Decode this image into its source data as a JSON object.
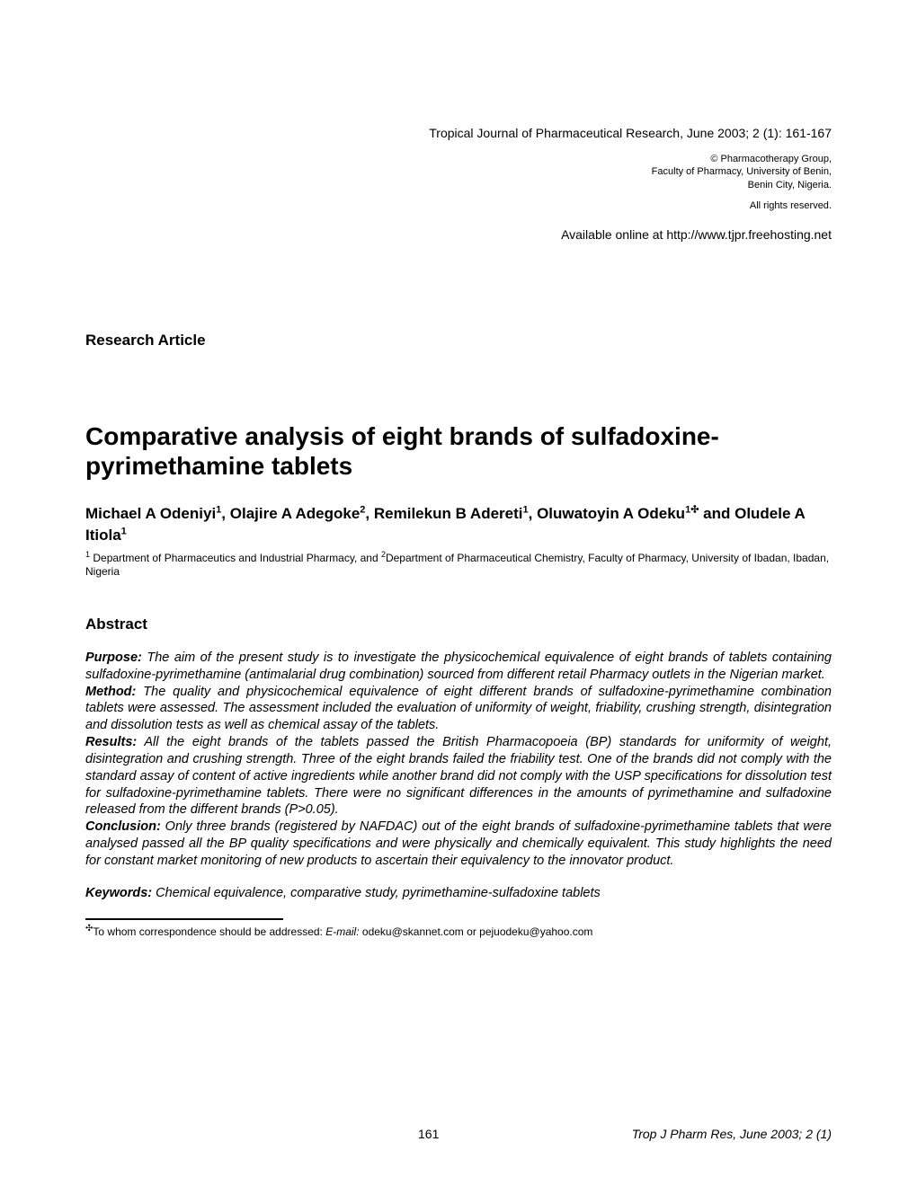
{
  "header": {
    "journal_line": "Tropical Journal of Pharmaceutical Research, June 2003; 2 (1): 161-167",
    "copyright_line1": "© Pharmacotherapy Group,",
    "copyright_line2": "Faculty of Pharmacy, University of Benin,",
    "copyright_line3": "Benin City, Nigeria.",
    "rights": "All rights reserved",
    "available": "Available online at http://www.tjpr.freehosting.net"
  },
  "article_type": "Research Article",
  "title": "Comparative analysis of eight brands of sulfadoxine-pyrimethamine tablets",
  "authors": {
    "a1_name": "Michael A Odeniyi",
    "a1_sup": "1",
    "a2_name": ", Olajire A Adegoke",
    "a2_sup": "2",
    "a3_name": ", Remilekun B Adereti",
    "a3_sup": "1",
    "a4_name": ", Oluwatoyin A Odeku",
    "a4_sup": "1",
    "a4_corresp": "✣",
    "a5_prefix": " and Oludele A Itiola",
    "a5_sup": "1"
  },
  "affiliation": {
    "sup1": "1",
    "part1": " Department of Pharmaceutics and Industrial Pharmacy, and ",
    "sup2": "2",
    "part2": "Department of Pharmaceutical Chemistry, Faculty of Pharmacy, University of Ibadan, Ibadan, Nigeria"
  },
  "abstract": {
    "heading": "Abstract",
    "purpose_label": "Purpose:",
    "purpose_text": "  The aim of the present study is to investigate the physicochemical equivalence of eight brands of tablets containing sulfadoxine-pyrimethamine (antimalarial drug combination) sourced from different retail Pharmacy outlets in the Nigerian market.",
    "method_label": "Method:",
    "method_text": "  The quality and physicochemical equivalence of eight different brands of sulfadoxine-pyrimethamine combination tablets were assessed. The assessment included the evaluation of uniformity of weight, friability, crushing strength, disintegration and dissolution tests as well as chemical assay of the tablets.",
    "results_label": "Results:",
    "results_text": "  All the eight brands of the tablets passed the British Pharmacopoeia (BP) standards for uniformity of weight, disintegration and crushing strength. Three of the eight brands failed the friability test. One of the brands did not comply with the standard assay of content of active ingredients while another brand did not comply with the USP specifications for dissolution test for sulfadoxine-pyrimethamine tablets. There were no significant differences in the amounts of pyrimethamine and sulfadoxine released from the different brands (P>0.05).",
    "conclusion_label": "Conclusion:",
    "conclusion_text": " Only three brands (registered by NAFDAC) out of the eight brands of sulfadoxine-pyrimethamine tablets that were analysed passed all the BP quality specifications and were physically and chemically equivalent. This study highlights the need for constant market monitoring of new products to ascertain their equivalency to the innovator product."
  },
  "keywords": {
    "label": "Keywords:",
    "text": " Chemical equivalence, comparative study, pyrimethamine-sulfadoxine tablets"
  },
  "footnote": {
    "symbol": "✣",
    "text1": "To whom correspondence should be addressed:  ",
    "email_label": "E-mail:",
    "text2": " odeku@skannet.com or pejuodeku@yahoo.com"
  },
  "footer": {
    "page_number": "161",
    "journal": "Trop J Pharm Res, June 2003; 2 (1)"
  }
}
